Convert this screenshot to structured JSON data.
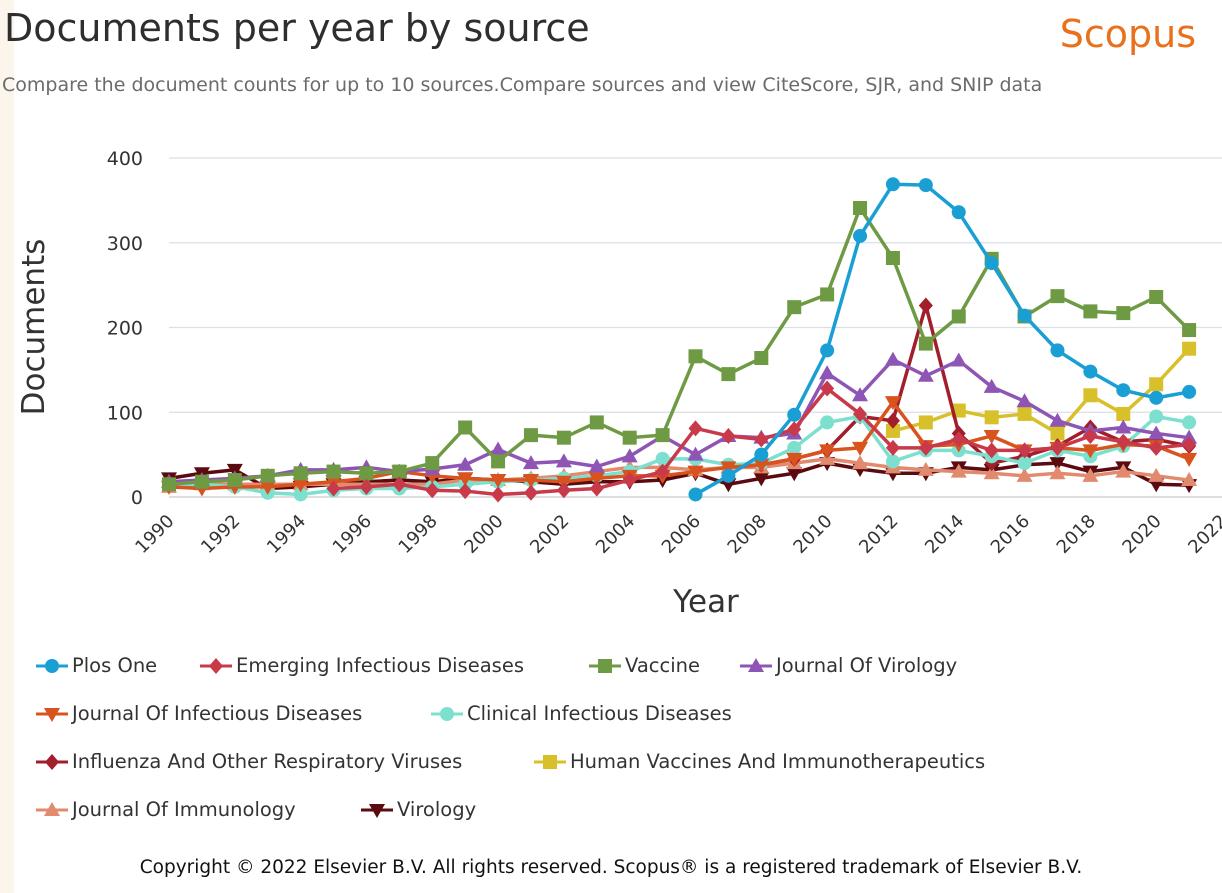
{
  "header": {
    "title": "Documents per year by source",
    "brand": "Scopus",
    "subtitle": "Compare the document counts for up to 10 sources.Compare sources and view CiteScore, SJR, and SNIP data"
  },
  "footer": {
    "copyright": "Copyright © 2022 Elsevier B.V. All rights reserved. Scopus® is a registered trademark of Elsevier B.V."
  },
  "chart_data": {
    "type": "line",
    "title": "Documents per year by source",
    "xlabel": "Year",
    "ylabel": "Documents",
    "xlim": [
      1990,
      2022
    ],
    "ylim": [
      0,
      400
    ],
    "xticks": [
      1990,
      1992,
      1994,
      1996,
      1998,
      2000,
      2002,
      2004,
      2006,
      2008,
      2010,
      2012,
      2014,
      2016,
      2018,
      2020,
      2022
    ],
    "yticks": [
      0,
      100,
      200,
      300,
      400
    ],
    "grid": "horizontal",
    "legend_position": "bottom",
    "series": [
      {
        "name": "Plos One",
        "color": "#1a9fd4",
        "marker": "circle",
        "x": [
          2006,
          2007,
          2008,
          2009,
          2010,
          2011,
          2012,
          2013,
          2014,
          2015,
          2016,
          2017,
          2018,
          2019,
          2020,
          2021
        ],
        "values": [
          3,
          25,
          50,
          97,
          173,
          308,
          369,
          368,
          336,
          276,
          214,
          173,
          148,
          126,
          117,
          124
        ]
      },
      {
        "name": "Emerging Infectious Diseases",
        "color": "#c83a4a",
        "marker": "diamond",
        "x": [
          1995,
          1996,
          1997,
          1998,
          1999,
          2000,
          2001,
          2002,
          2003,
          2004,
          2005,
          2006,
          2007,
          2008,
          2009,
          2010,
          2011,
          2012,
          2013,
          2014,
          2015,
          2016,
          2017,
          2018,
          2019,
          2020,
          2021
        ],
        "values": [
          10,
          12,
          15,
          8,
          7,
          3,
          5,
          8,
          10,
          20,
          30,
          81,
          72,
          68,
          80,
          128,
          98,
          58,
          58,
          68,
          55,
          55,
          58,
          72,
          65,
          58,
          62
        ]
      },
      {
        "name": "Vaccine",
        "color": "#6f9a44",
        "marker": "square",
        "x": [
          1990,
          1991,
          1992,
          1993,
          1994,
          1995,
          1996,
          1997,
          1998,
          1999,
          2000,
          2001,
          2002,
          2003,
          2004,
          2005,
          2006,
          2007,
          2008,
          2009,
          2010,
          2011,
          2012,
          2013,
          2014,
          2015,
          2016,
          2017,
          2018,
          2019,
          2020,
          2021
        ],
        "values": [
          15,
          18,
          20,
          25,
          28,
          30,
          28,
          30,
          40,
          82,
          42,
          73,
          70,
          88,
          70,
          73,
          166,
          145,
          164,
          224,
          239,
          341,
          282,
          181,
          213,
          281,
          213,
          237,
          219,
          217,
          236,
          197
        ]
      },
      {
        "name": "Journal Of Virology",
        "color": "#8e55b5",
        "marker": "triangle-up",
        "x": [
          1990,
          1991,
          1992,
          1993,
          1994,
          1995,
          1996,
          1997,
          1998,
          1999,
          2000,
          2001,
          2002,
          2003,
          2004,
          2005,
          2006,
          2007,
          2008,
          2009,
          2010,
          2011,
          2012,
          2013,
          2014,
          2015,
          2016,
          2017,
          2018,
          2019,
          2020,
          2021
        ],
        "values": [
          18,
          20,
          22,
          25,
          32,
          32,
          35,
          30,
          33,
          38,
          56,
          40,
          42,
          36,
          48,
          72,
          50,
          72,
          70,
          75,
          146,
          120,
          162,
          143,
          161,
          130,
          113,
          90,
          78,
          82,
          75,
          70
        ]
      },
      {
        "name": "Journal Of Infectious Diseases",
        "color": "#d9531e",
        "marker": "triangle-down",
        "x": [
          1990,
          1991,
          1992,
          1993,
          1994,
          1995,
          1996,
          1997,
          1998,
          1999,
          2000,
          2001,
          2002,
          2003,
          2004,
          2005,
          2006,
          2007,
          2008,
          2009,
          2010,
          2011,
          2012,
          2013,
          2014,
          2015,
          2016,
          2017,
          2018,
          2019,
          2020,
          2021
        ],
        "values": [
          12,
          10,
          12,
          12,
          15,
          18,
          22,
          30,
          25,
          22,
          20,
          20,
          18,
          22,
          25,
          25,
          30,
          35,
          38,
          45,
          55,
          58,
          112,
          60,
          62,
          72,
          55,
          58,
          55,
          62,
          60,
          45
        ]
      },
      {
        "name": "Clinical Infectious Diseases",
        "color": "#7de0cf",
        "marker": "circle",
        "x": [
          1990,
          1991,
          1992,
          1993,
          1994,
          1995,
          1996,
          1997,
          1998,
          1999,
          2000,
          2001,
          2002,
          2003,
          2004,
          2005,
          2006,
          2007,
          2008,
          2009,
          2010,
          2011,
          2012,
          2013,
          2014,
          2015,
          2016,
          2017,
          2018,
          2019,
          2020,
          2021
        ],
        "values": [
          15,
          15,
          12,
          5,
          3,
          8,
          10,
          10,
          12,
          15,
          18,
          20,
          22,
          25,
          30,
          45,
          45,
          38,
          40,
          58,
          88,
          95,
          42,
          55,
          55,
          48,
          40,
          55,
          48,
          60,
          95,
          88
        ]
      },
      {
        "name": "Influenza And Other Respiratory Viruses",
        "color": "#a11e2a",
        "marker": "diamond",
        "x": [
          2007,
          2008,
          2009,
          2010,
          2011,
          2012,
          2013,
          2014,
          2015,
          2016,
          2017,
          2018,
          2019,
          2020,
          2021
        ],
        "values": [
          35,
          38,
          45,
          55,
          95,
          90,
          226,
          75,
          40,
          48,
          60,
          82,
          65,
          68,
          60
        ]
      },
      {
        "name": "Human Vaccines And Immunotherapeutics",
        "color": "#d8c02a",
        "marker": "square",
        "x": [
          2012,
          2013,
          2014,
          2015,
          2016,
          2017,
          2018,
          2019,
          2020,
          2021
        ],
        "values": [
          78,
          88,
          102,
          94,
          98,
          75,
          120,
          98,
          133,
          175
        ]
      },
      {
        "name": "Journal Of Immunology",
        "color": "#e28a6e",
        "marker": "triangle-up",
        "x": [
          1990,
          1991,
          1992,
          1993,
          1994,
          1995,
          1996,
          1997,
          1998,
          1999,
          2000,
          2001,
          2002,
          2003,
          2004,
          2005,
          2006,
          2007,
          2008,
          2009,
          2010,
          2011,
          2012,
          2013,
          2014,
          2015,
          2016,
          2017,
          2018,
          2019,
          2020,
          2021
        ],
        "values": [
          12,
          15,
          15,
          15,
          15,
          15,
          15,
          15,
          15,
          20,
          20,
          22,
          25,
          30,
          35,
          35,
          32,
          35,
          35,
          40,
          45,
          40,
          35,
          32,
          30,
          28,
          25,
          28,
          25,
          30,
          25,
          20
        ]
      },
      {
        "name": "Virology",
        "color": "#5b0a10",
        "marker": "triangle-down",
        "x": [
          1990,
          1991,
          1992,
          1993,
          1994,
          1995,
          1996,
          1997,
          1998,
          1999,
          2000,
          2001,
          2002,
          2003,
          2004,
          2005,
          2006,
          2007,
          2008,
          2009,
          2010,
          2011,
          2012,
          2013,
          2014,
          2015,
          2016,
          2017,
          2018,
          2019,
          2020,
          2021
        ],
        "values": [
          22,
          28,
          32,
          10,
          12,
          15,
          18,
          20,
          18,
          22,
          20,
          18,
          15,
          18,
          18,
          20,
          28,
          15,
          22,
          28,
          40,
          33,
          28,
          28,
          35,
          32,
          38,
          40,
          30,
          35,
          15,
          14
        ]
      }
    ]
  }
}
